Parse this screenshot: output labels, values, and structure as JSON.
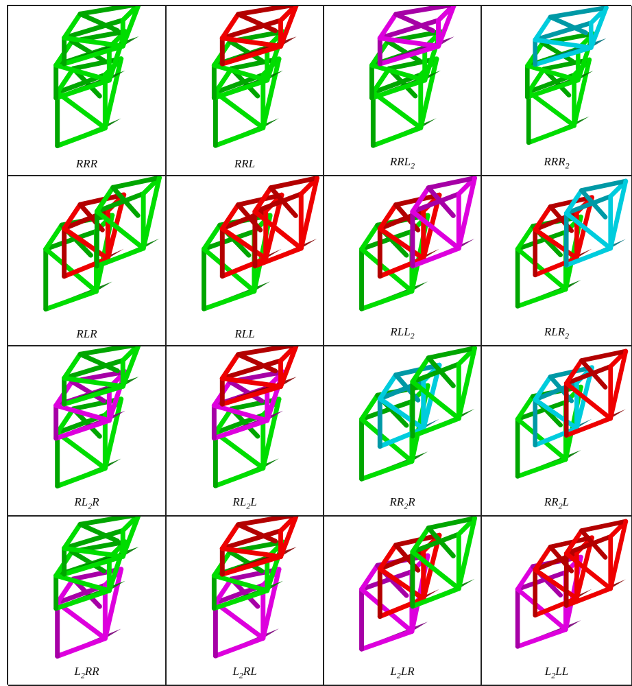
{
  "colors": {
    "R": "#00dd00",
    "L": "#ee0000",
    "L2": "#dd00dd",
    "R2": "#00ccdd"
  },
  "cells": [
    {
      "caption": [
        "R",
        "R",
        "R"
      ],
      "units": [
        "R",
        "R",
        "R"
      ],
      "orient": 0
    },
    {
      "caption": [
        "R",
        "R",
        "L"
      ],
      "units": [
        "R",
        "R",
        "L"
      ],
      "orient": 0
    },
    {
      "caption": [
        "R",
        "R",
        "L",
        "2"
      ],
      "units": [
        "R",
        "R",
        "L2"
      ],
      "orient": 0
    },
    {
      "caption": [
        "R",
        "R",
        "R",
        "2"
      ],
      "units": [
        "R",
        "R",
        "R2"
      ],
      "orient": 0
    },
    {
      "caption": [
        "R",
        "L",
        "R"
      ],
      "units": [
        "R",
        "L",
        "R"
      ],
      "orient": 1
    },
    {
      "caption": [
        "R",
        "L",
        "L"
      ],
      "units": [
        "R",
        "L",
        "L"
      ],
      "orient": 1
    },
    {
      "caption": [
        "R",
        "L",
        "L",
        "2"
      ],
      "units": [
        "R",
        "L",
        "L2"
      ],
      "orient": 1
    },
    {
      "caption": [
        "R",
        "L",
        "R",
        "2"
      ],
      "units": [
        "R",
        "L",
        "R2"
      ],
      "orient": 1
    },
    {
      "caption": [
        "R",
        "L",
        "2",
        "R"
      ],
      "units": [
        "R",
        "L2",
        "R"
      ],
      "orient": 0
    },
    {
      "caption": [
        "R",
        "L",
        "2",
        "L"
      ],
      "units": [
        "R",
        "L2",
        "L"
      ],
      "orient": 0
    },
    {
      "caption": [
        "R",
        "R",
        "2",
        "R"
      ],
      "units": [
        "R",
        "R2",
        "R"
      ],
      "orient": 1
    },
    {
      "caption": [
        "R",
        "R",
        "2",
        "L"
      ],
      "units": [
        "R",
        "R2",
        "L"
      ],
      "orient": 1
    },
    {
      "caption": [
        "L",
        "2",
        "R",
        "R"
      ],
      "units": [
        "L2",
        "R",
        "R"
      ],
      "orient": 0
    },
    {
      "caption": [
        "L",
        "2",
        "R",
        "L"
      ],
      "units": [
        "L2",
        "R",
        "L"
      ],
      "orient": 0
    },
    {
      "caption": [
        "L",
        "2",
        "L",
        "R"
      ],
      "units": [
        "L2",
        "L",
        "R"
      ],
      "orient": 1
    },
    {
      "caption": [
        "L",
        "2",
        "L",
        "L"
      ],
      "units": [
        "L2",
        "L",
        "L"
      ],
      "orient": 1
    }
  ]
}
